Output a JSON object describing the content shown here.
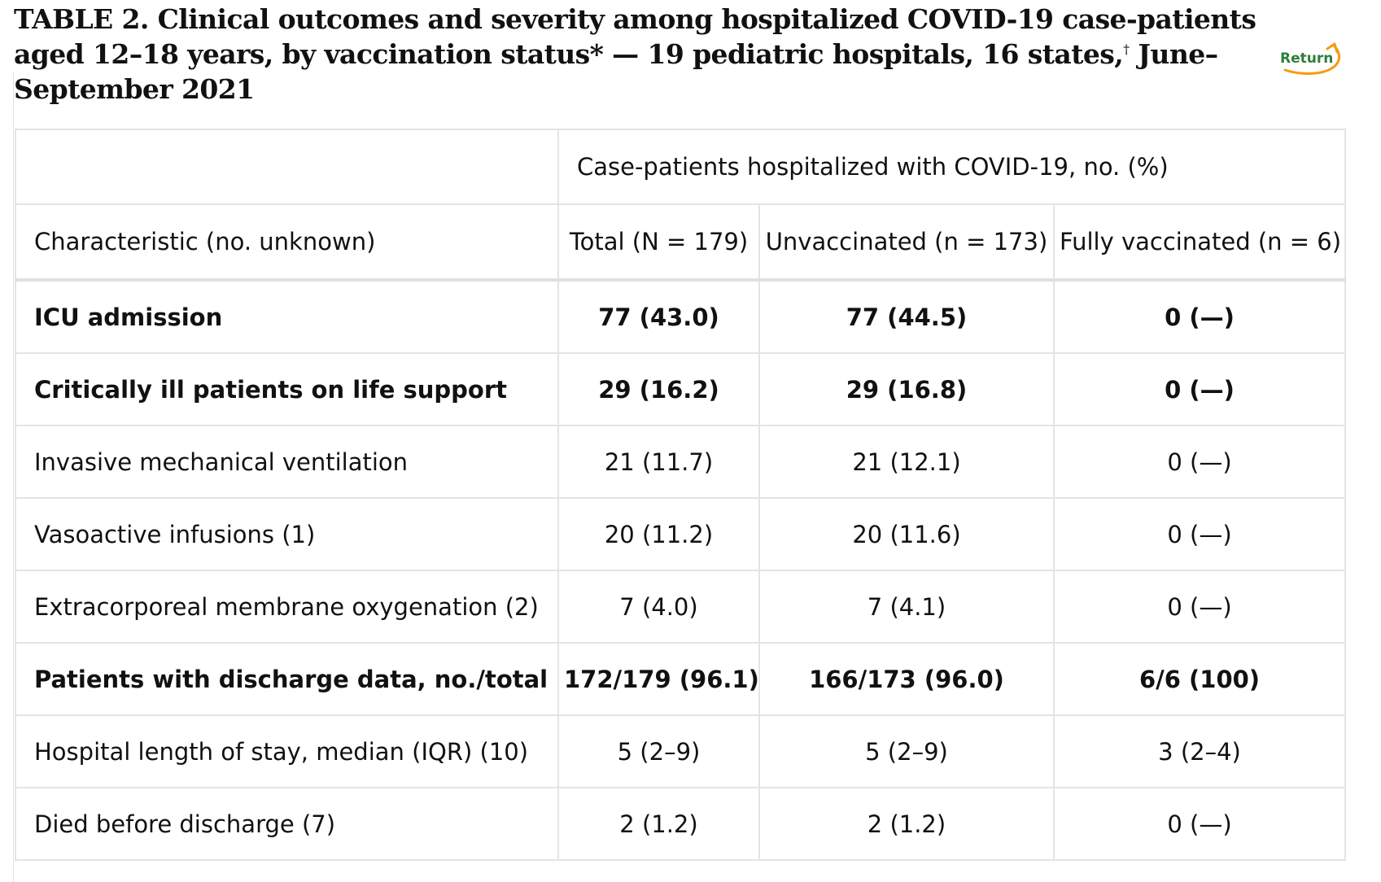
{
  "title": {
    "main": "TABLE 2. Clinical outcomes and severity among hospitalized COVID-19 case-patients aged 12–18 years, by vaccination status* — 19 pediatric hospitals, 16 states,",
    "dagger": "†",
    "tail": " June–September 2021"
  },
  "return_link": {
    "label": "Return",
    "color": "#2e7d3a",
    "arrow_color": "#f39c12"
  },
  "table": {
    "group_header": "Case-patients hospitalized with COVID-19, no. (%)",
    "columns": [
      "Characteristic (no. unknown)",
      "Total (N = 179)",
      "Unvaccinated (n = 173)",
      "Fully vaccinated (n = 6)"
    ],
    "rows": [
      {
        "label": "ICU admission",
        "total": "77 (43.0)",
        "unvaccinated": "77 (44.5)",
        "vaccinated": "0 (—)",
        "bold": true
      },
      {
        "label": "Critically ill patients on life support",
        "total": "29 (16.2)",
        "unvaccinated": "29 (16.8)",
        "vaccinated": "0 (—)",
        "bold": true
      },
      {
        "label": "Invasive mechanical ventilation",
        "total": "21 (11.7)",
        "unvaccinated": "21 (12.1)",
        "vaccinated": "0 (—)",
        "bold": false
      },
      {
        "label": "Vasoactive infusions (1)",
        "total": "20 (11.2)",
        "unvaccinated": "20 (11.6)",
        "vaccinated": "0 (—)",
        "bold": false
      },
      {
        "label": "Extracorporeal membrane oxygenation (2)",
        "total": "7 (4.0)",
        "unvaccinated": "7 (4.1)",
        "vaccinated": "0 (—)",
        "bold": false
      },
      {
        "label": "Patients with discharge data, no./total no (%)",
        "total": "172/179 (96.1)",
        "unvaccinated": "166/173 (96.0)",
        "vaccinated": "6/6 (100)",
        "bold": true
      },
      {
        "label": "Hospital length of stay, median (IQR) (10)",
        "total": "5 (2–9)",
        "unvaccinated": "5 (2–9)",
        "vaccinated": "3 (2–4)",
        "bold": false
      },
      {
        "label": "Died before discharge (7)",
        "total": "2 (1.2)",
        "unvaccinated": "2 (1.2)",
        "vaccinated": "0 (—)",
        "bold": false
      }
    ]
  }
}
